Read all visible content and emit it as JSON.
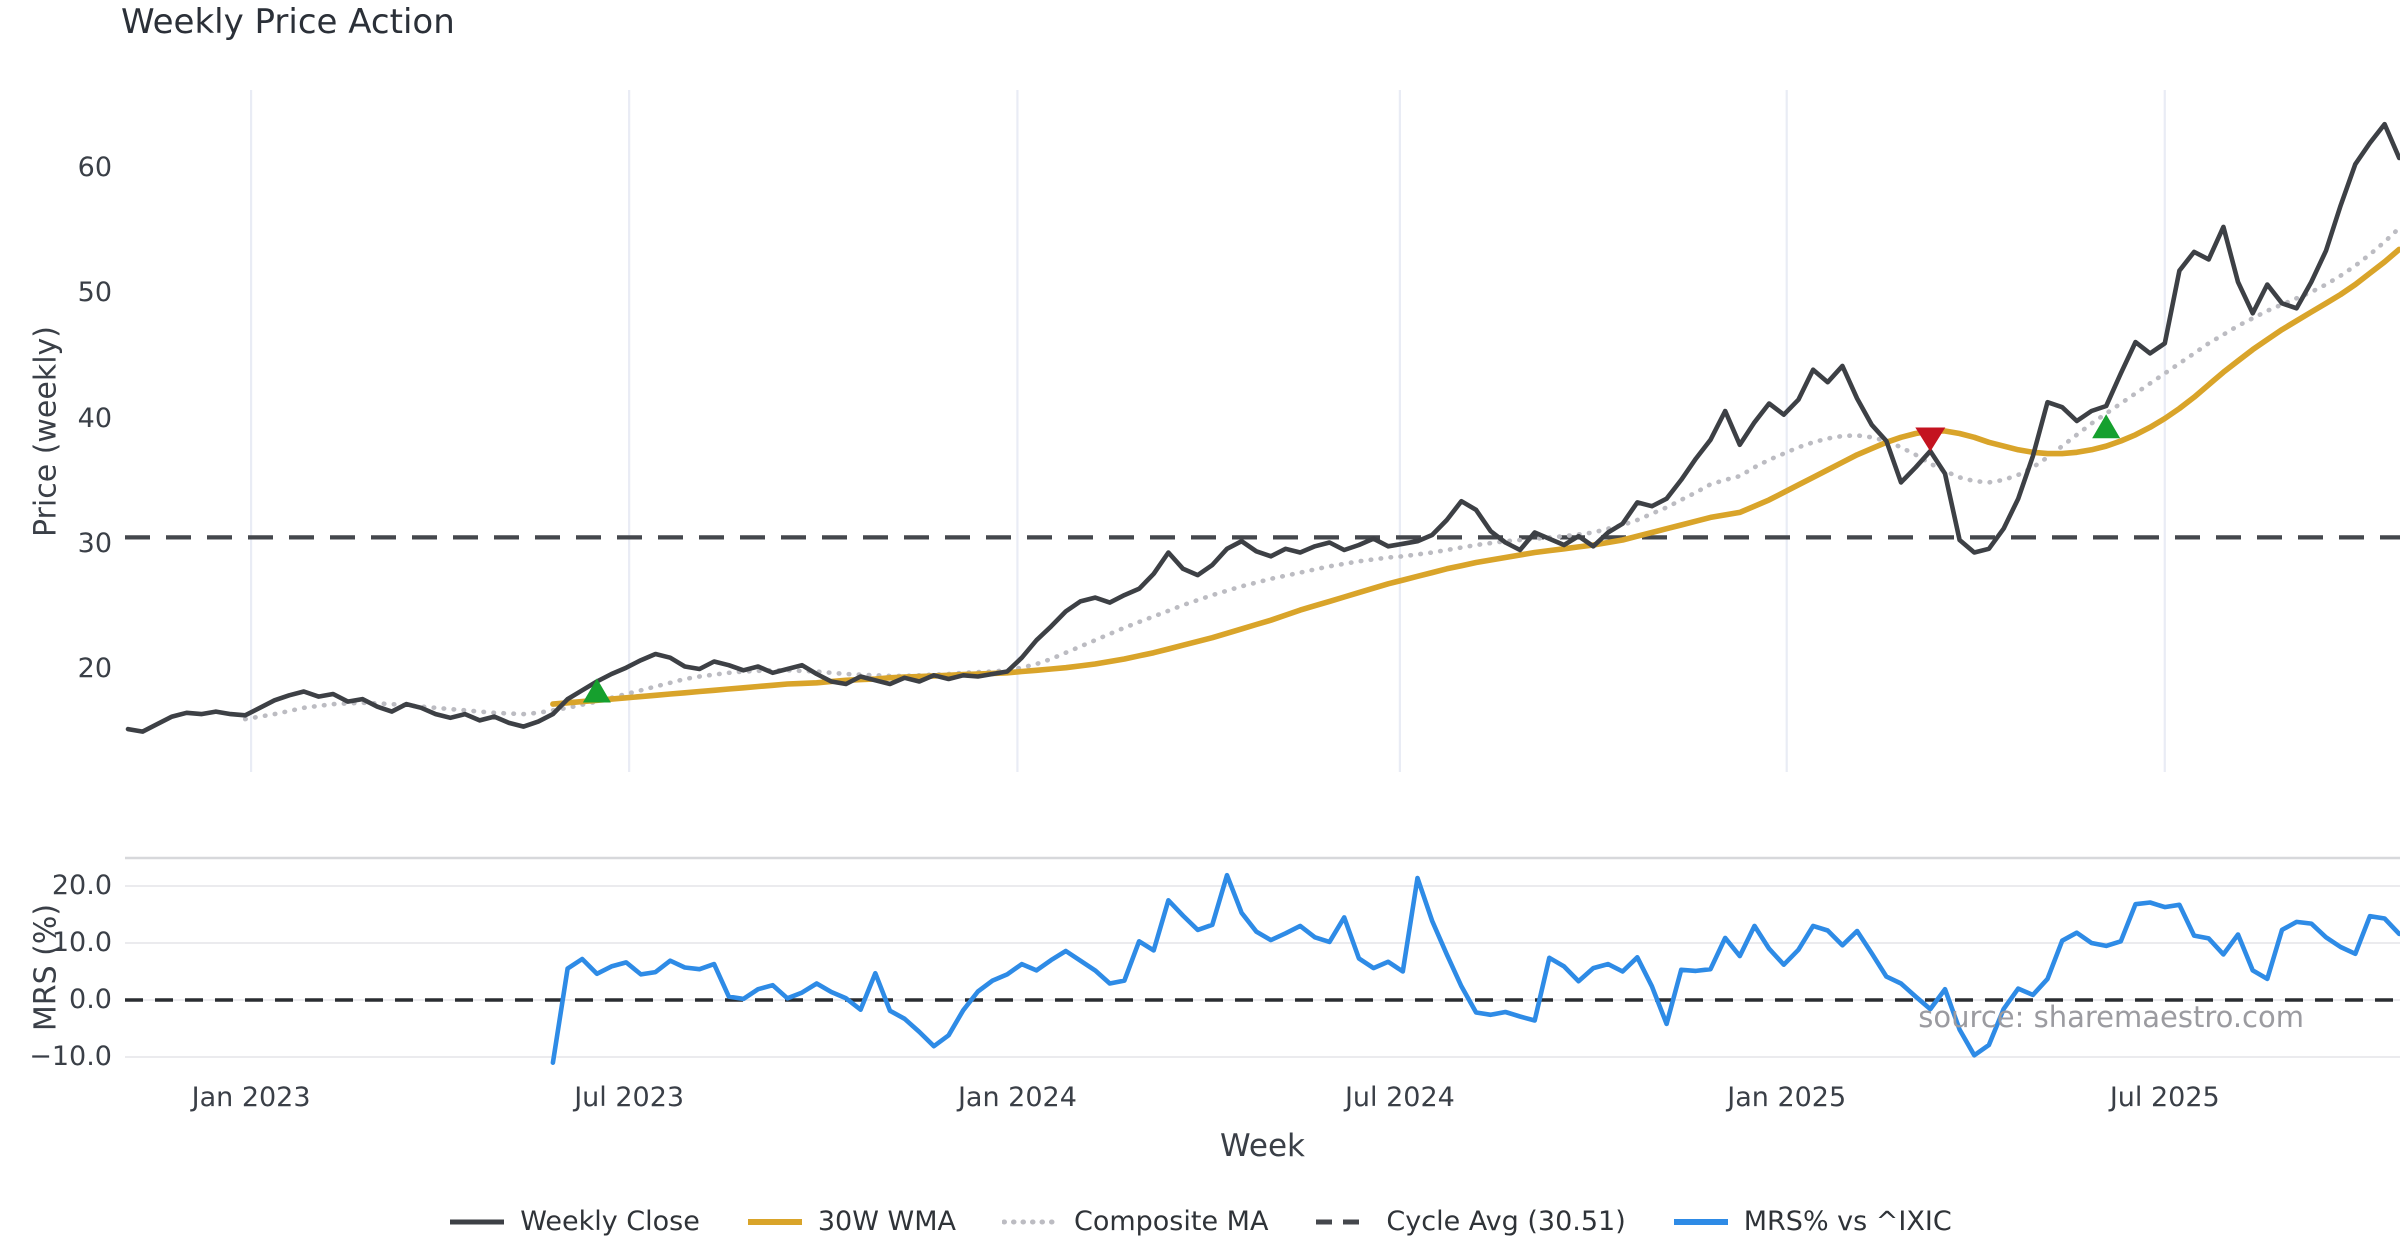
{
  "title": "Weekly Price Action",
  "watermark": "source: sharemaestro.com",
  "axes": {
    "price_ylabel": "Price (weekly)",
    "mrs_ylabel": "MRS (%)",
    "xlabel": "Week"
  },
  "colors": {
    "weekly_close": "#3d4045",
    "wma": "#d9a42a",
    "composite": "#bcbcc2",
    "cycle_avg": "#44474c",
    "mrs": "#2e8be6",
    "buy_marker": "#16a02e",
    "sell_marker": "#c41320",
    "grid_vertical": "#e9ecf5",
    "grid_horizontal": "#ebebee",
    "panel_border": "#d7d8db",
    "zero_line": "#2a2d31"
  },
  "x_axis": {
    "label": "Week",
    "ticks": [
      {
        "week": 8.4,
        "label": "Jan 2023"
      },
      {
        "week": 34.2,
        "label": "Jul 2023"
      },
      {
        "week": 60.7,
        "label": "Jan 2024"
      },
      {
        "week": 86.8,
        "label": "Jul 2024"
      },
      {
        "week": 113.2,
        "label": "Jan 2025"
      },
      {
        "week": 139.0,
        "label": "Jul 2025"
      }
    ]
  },
  "legend": [
    {
      "label": "Weekly Close",
      "color": "#3d4045",
      "style": "solid",
      "width": 5
    },
    {
      "label": "30W WMA",
      "color": "#d9a42a",
      "style": "solid",
      "width": 6
    },
    {
      "label": "Composite MA",
      "color": "#bcbcc2",
      "style": "dotted",
      "width": 5
    },
    {
      "label": "Cycle Avg (30.51)",
      "color": "#44474c",
      "style": "dashed",
      "width": 5
    },
    {
      "label": "MRS% vs ^IXIC",
      "color": "#2e8be6",
      "style": "solid",
      "width": 6
    }
  ],
  "chart_data": [
    {
      "type": "line",
      "panel": "price",
      "title": "Weekly Price Action",
      "ylabel": "Price (weekly)",
      "ylim": [
        12,
        66
      ],
      "yticks": [
        20,
        30,
        40,
        50,
        60
      ],
      "x_start": "Nov 2022 (week 0), weekly steps",
      "cycle_avg_value": 30.51,
      "series": [
        {
          "name": "Weekly Close",
          "color": "#3d4045",
          "style": "solid",
          "width": 4.6,
          "start_week": 0,
          "values": [
            15.2,
            15.0,
            15.6,
            16.2,
            16.5,
            16.4,
            16.6,
            16.4,
            16.3,
            16.9,
            17.5,
            17.9,
            18.2,
            17.8,
            18.0,
            17.4,
            17.6,
            17.0,
            16.6,
            17.2,
            16.9,
            16.4,
            16.1,
            16.4,
            15.9,
            16.2,
            15.7,
            15.4,
            15.8,
            16.4,
            17.6,
            18.3,
            19.0,
            19.6,
            20.1,
            20.7,
            21.2,
            20.9,
            20.2,
            20.0,
            20.6,
            20.3,
            19.9,
            20.2,
            19.7,
            20.0,
            20.3,
            19.6,
            19.0,
            18.8,
            19.4,
            19.1,
            18.8,
            19.3,
            19.0,
            19.5,
            19.2,
            19.5,
            19.4,
            19.6,
            19.8,
            20.9,
            22.3,
            23.4,
            24.6,
            25.4,
            25.7,
            25.3,
            25.9,
            26.4,
            27.6,
            29.3,
            28.0,
            27.5,
            28.3,
            29.6,
            30.2,
            29.4,
            29.0,
            29.6,
            29.3,
            29.8,
            30.1,
            29.5,
            29.9,
            30.4,
            29.8,
            30.0,
            30.2,
            30.7,
            31.9,
            33.4,
            32.7,
            31.0,
            30.1,
            29.5,
            30.9,
            30.4,
            29.9,
            30.6,
            29.8,
            30.9,
            31.6,
            33.3,
            33.0,
            33.6,
            35.1,
            36.8,
            38.3,
            40.6,
            37.9,
            39.7,
            41.2,
            40.3,
            41.5,
            43.9,
            42.9,
            44.2,
            41.6,
            39.5,
            38.2,
            34.9,
            36.1,
            37.4,
            35.6,
            30.3,
            29.3,
            29.6,
            31.2,
            33.6,
            37.0,
            41.3,
            40.9,
            39.8,
            40.6,
            41.0,
            43.6,
            46.1,
            45.2,
            46.0,
            51.8,
            53.3,
            52.7,
            55.3,
            50.9,
            48.4,
            50.7,
            49.2,
            48.8,
            50.9,
            53.4,
            57.0,
            60.3,
            62.0,
            63.5,
            60.8
          ]
        },
        {
          "name": "30W WMA",
          "color": "#d9a42a",
          "style": "solid",
          "width": 5.6,
          "start_week": 29,
          "values": [
            17.2,
            17.3,
            17.4,
            17.5,
            17.6,
            17.7,
            17.8,
            17.9,
            18.0,
            18.1,
            18.2,
            18.3,
            18.4,
            18.5,
            18.6,
            18.7,
            18.8,
            18.85,
            18.9,
            19.0,
            19.1,
            19.15,
            19.2,
            19.3,
            19.35,
            19.4,
            19.45,
            19.5,
            19.55,
            19.6,
            19.65,
            19.7,
            19.8,
            19.9,
            20.0,
            20.1,
            20.25,
            20.4,
            20.6,
            20.8,
            21.05,
            21.3,
            21.6,
            21.9,
            22.2,
            22.5,
            22.85,
            23.2,
            23.55,
            23.9,
            24.3,
            24.7,
            25.05,
            25.4,
            25.75,
            26.1,
            26.45,
            26.8,
            27.1,
            27.4,
            27.7,
            28.0,
            28.25,
            28.5,
            28.7,
            28.9,
            29.1,
            29.3,
            29.45,
            29.6,
            29.75,
            29.9,
            30.1,
            30.3,
            30.6,
            30.9,
            31.2,
            31.5,
            31.8,
            32.1,
            32.3,
            32.5,
            33.0,
            33.5,
            34.1,
            34.7,
            35.3,
            35.9,
            36.5,
            37.1,
            37.6,
            38.1,
            38.5,
            38.8,
            39.0,
            39.0,
            38.8,
            38.5,
            38.1,
            37.8,
            37.5,
            37.3,
            37.2,
            37.2,
            37.3,
            37.5,
            37.8,
            38.2,
            38.7,
            39.3,
            40.0,
            40.8,
            41.7,
            42.7,
            43.7,
            44.6,
            45.5,
            46.3,
            47.1,
            47.8,
            48.5,
            49.2,
            49.9,
            50.7,
            51.6,
            52.5,
            53.5
          ]
        },
        {
          "name": "Composite MA",
          "color": "#bcbcc2",
          "style": "dotted",
          "width": 4.6,
          "start_week": 8,
          "values": [
            16.0,
            16.2,
            16.4,
            16.65,
            16.9,
            17.05,
            17.2,
            17.25,
            17.3,
            17.25,
            17.2,
            17.1,
            17.0,
            16.9,
            16.8,
            16.7,
            16.6,
            16.5,
            16.45,
            16.4,
            16.5,
            16.7,
            16.9,
            17.15,
            17.4,
            17.7,
            18.0,
            18.3,
            18.6,
            18.9,
            19.2,
            19.4,
            19.55,
            19.7,
            19.8,
            19.85,
            19.9,
            19.9,
            19.85,
            19.8,
            19.7,
            19.6,
            19.55,
            19.5,
            19.45,
            19.45,
            19.5,
            19.55,
            19.6,
            19.7,
            19.75,
            19.8,
            19.9,
            20.1,
            20.4,
            20.8,
            21.3,
            21.8,
            22.3,
            22.8,
            23.3,
            23.75,
            24.2,
            24.65,
            25.1,
            25.5,
            25.9,
            26.25,
            26.6,
            26.9,
            27.2,
            27.45,
            27.7,
            27.95,
            28.2,
            28.4,
            28.6,
            28.75,
            28.9,
            29.0,
            29.15,
            29.3,
            29.5,
            29.7,
            29.9,
            30.05,
            30.2,
            30.3,
            30.4,
            30.5,
            30.6,
            30.75,
            30.9,
            31.2,
            31.5,
            31.9,
            32.4,
            32.9,
            33.5,
            34.1,
            34.75,
            35.1,
            35.4,
            36.1,
            36.7,
            37.2,
            37.7,
            38.1,
            38.4,
            38.6,
            38.65,
            38.5,
            38.2,
            37.7,
            37.1,
            36.4,
            35.8,
            35.3,
            35.0,
            34.9,
            35.1,
            35.5,
            36.1,
            36.9,
            37.8,
            38.7,
            39.6,
            40.4,
            41.2,
            42.0,
            42.8,
            43.6,
            44.4,
            45.2,
            46.0,
            46.7,
            47.4,
            48.0,
            48.6,
            49.1,
            49.6,
            50.1,
            50.7,
            51.4,
            52.2,
            53.1,
            54.1,
            55.2
          ]
        },
        {
          "name": "Cycle Avg (30.51)",
          "color": "#44474c",
          "style": "dashed",
          "width": 4.2,
          "constant": 30.51
        }
      ],
      "markers": [
        {
          "type": "buy",
          "shape": "triangle-up",
          "color": "#16a02e",
          "week": 32,
          "value": 18.2
        },
        {
          "type": "sell",
          "shape": "triangle-down",
          "color": "#c41320",
          "week": 123,
          "value": 38.4
        },
        {
          "type": "buy",
          "shape": "triangle-up",
          "color": "#16a02e",
          "week": 135,
          "value": 39.3
        }
      ]
    },
    {
      "type": "line",
      "panel": "mrs",
      "ylabel": "MRS (%)",
      "ylim": [
        -13.7,
        24.9
      ],
      "yticks": [
        20,
        10,
        0,
        -10
      ],
      "ytick_labels": [
        "20.0",
        "10.0",
        "0.0",
        "−10.0"
      ],
      "zero_line": 0,
      "series": [
        {
          "name": "MRS% vs ^IXIC",
          "color": "#2e8be6",
          "style": "solid",
          "width": 4.6,
          "start_week": 29,
          "values": [
            -11.0,
            5.5,
            7.2,
            4.6,
            5.9,
            6.6,
            4.5,
            4.9,
            6.9,
            5.7,
            5.4,
            6.3,
            0.6,
            0.2,
            1.9,
            2.6,
            0.3,
            1.3,
            2.9,
            1.4,
            0.3,
            -1.7,
            4.7,
            -1.9,
            -3.3,
            -5.6,
            -8.1,
            -6.2,
            -1.8,
            1.5,
            3.4,
            4.5,
            6.3,
            5.2,
            7.0,
            8.6,
            6.9,
            5.2,
            2.9,
            3.4,
            10.3,
            8.7,
            17.5,
            14.8,
            12.3,
            13.2,
            21.9,
            15.3,
            12.0,
            10.5,
            11.7,
            13.0,
            11.0,
            10.2,
            14.5,
            7.3,
            5.6,
            6.7,
            5.0,
            21.4,
            13.9,
            8.0,
            2.4,
            -2.2,
            -2.6,
            -2.1,
            -2.9,
            -3.6,
            7.4,
            5.9,
            3.3,
            5.6,
            6.3,
            5.0,
            7.5,
            2.4,
            -4.2,
            5.3,
            5.1,
            5.4,
            10.9,
            7.7,
            13.0,
            9.0,
            6.2,
            8.8,
            13.0,
            12.2,
            9.6,
            12.1,
            8.2,
            4.1,
            2.9,
            0.6,
            -1.6,
            1.9,
            -5.2,
            -9.7,
            -7.9,
            -1.6,
            2.0,
            0.9,
            3.7,
            10.4,
            11.8,
            10.0,
            9.5,
            10.3,
            16.8,
            17.1,
            16.3,
            16.7,
            11.3,
            10.8,
            8.0,
            11.5,
            5.2,
            3.7,
            12.3,
            13.7,
            13.4,
            11.0,
            9.3,
            8.1,
            14.7,
            14.3,
            11.6
          ]
        }
      ]
    }
  ]
}
